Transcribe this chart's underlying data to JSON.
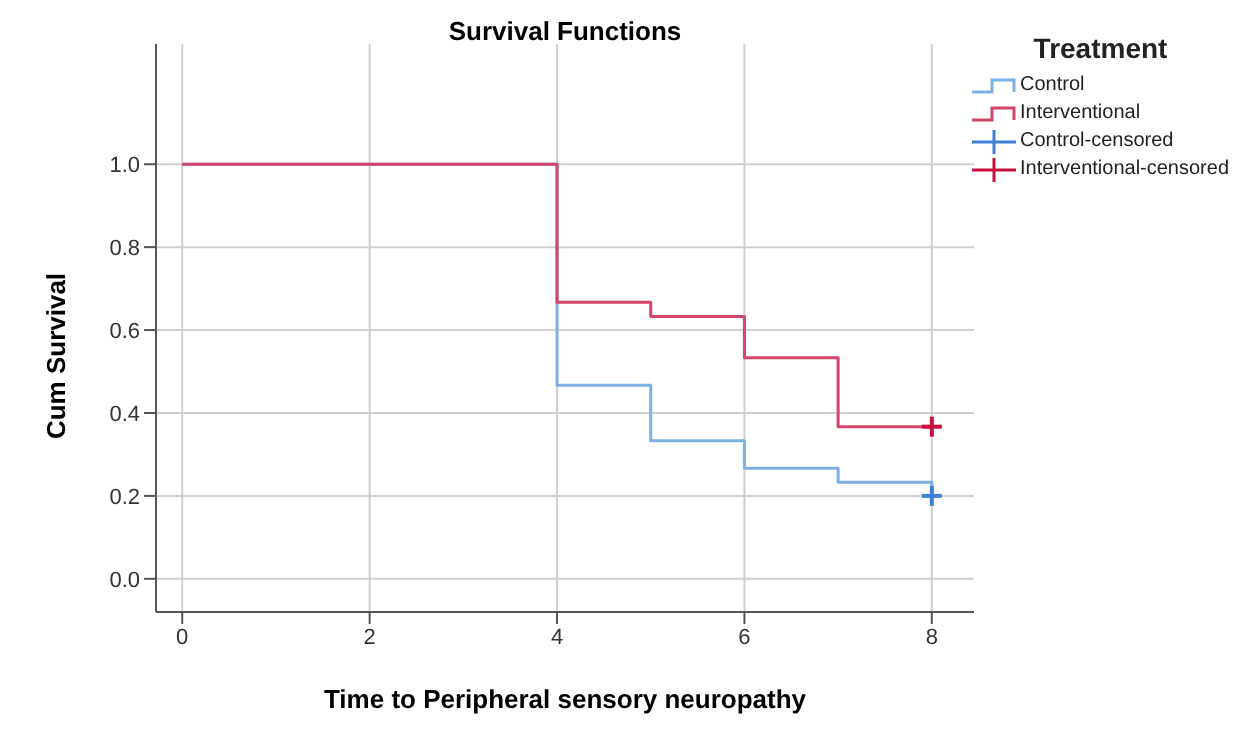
{
  "chart_data": {
    "type": "step",
    "title": "Survival Functions",
    "xlabel": "Time to Peripheral sensory neuropathy",
    "ylabel": "Cum Survival",
    "legend_title": "Treatment",
    "legend": "right",
    "grid": true,
    "xlim": [
      -0.28,
      8.45
    ],
    "xticks": [
      0,
      2,
      4,
      6,
      8
    ],
    "ylim": [
      -0.08,
      1.29
    ],
    "yticks": [
      {
        "value": 0,
        "label": "0.0"
      },
      0.2,
      0.4,
      0.6,
      0.8,
      {
        "value": 1,
        "label": "1.0"
      }
    ],
    "series": [
      {
        "name": "Control",
        "color": "#7fb0e3",
        "x": [
          0,
          4,
          5,
          6,
          7,
          8
        ],
        "values": [
          1.0,
          0.467,
          0.333,
          0.267,
          0.233,
          0.2
        ]
      },
      {
        "name": "Interventional",
        "color": "#d4456a",
        "x": [
          0,
          4,
          5,
          6,
          7,
          8
        ],
        "values": [
          1.0,
          0.667,
          0.633,
          0.533,
          0.367,
          0.367
        ]
      },
      {
        "name": "Control-censored",
        "type": "scatter",
        "marker": "cross",
        "color": "#3d80d6",
        "x": [
          8
        ],
        "values": [
          0.2
        ]
      },
      {
        "name": "Interventional-censored",
        "type": "scatter",
        "marker": "cross",
        "color": "#c8103e",
        "x": [
          8
        ],
        "values": [
          0.367
        ]
      }
    ]
  }
}
